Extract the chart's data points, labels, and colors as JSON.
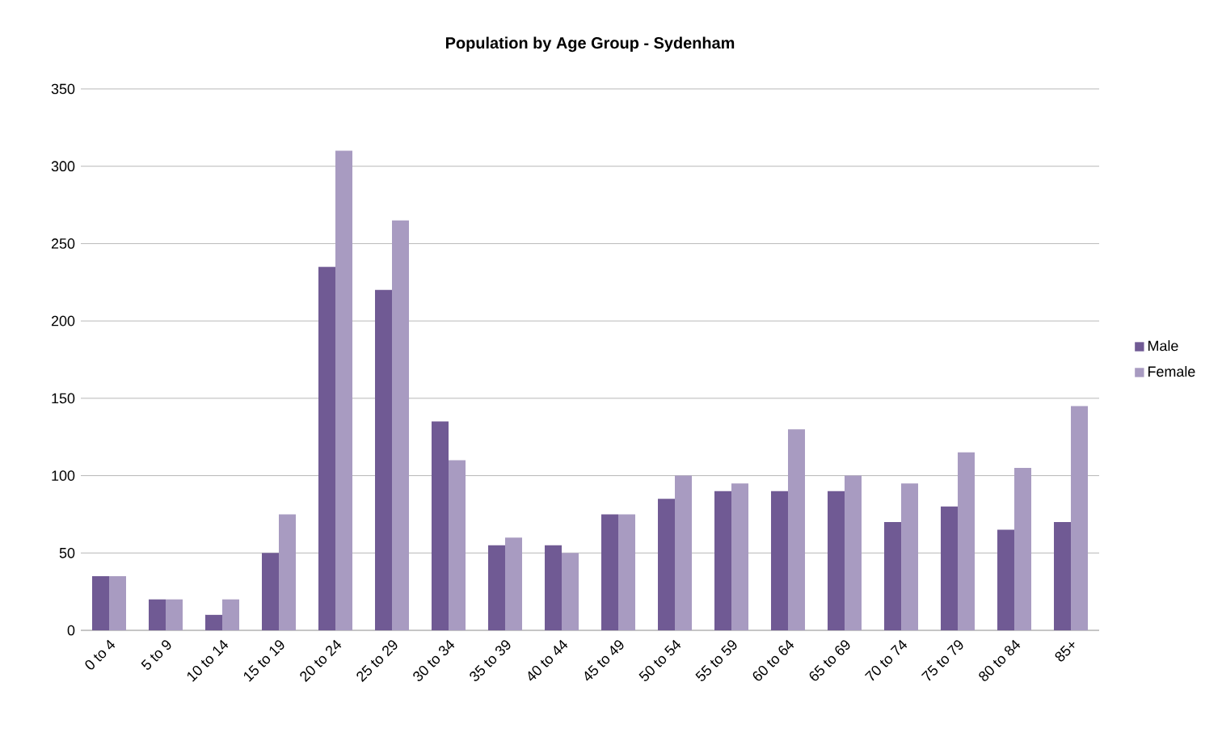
{
  "chart_data": {
    "type": "bar",
    "title": "Population by Age Group - Sydenham",
    "categories": [
      "0 to 4",
      "5 to 9",
      "10 to 14",
      "15 to 19",
      "20 to 24",
      "25 to 29",
      "30 to 34",
      "35 to 39",
      "40 to 44",
      "45 to 49",
      "50 to 54",
      "55 to 59",
      "60 to 64",
      "65 to 69",
      "70 to 74",
      "75 to 79",
      "80 to 84",
      "85+"
    ],
    "series": [
      {
        "name": "Male",
        "color": "#705a94",
        "values": [
          35,
          20,
          10,
          50,
          235,
          220,
          135,
          55,
          55,
          75,
          85,
          90,
          90,
          90,
          70,
          80,
          65,
          70
        ]
      },
      {
        "name": "Female",
        "color": "#a89bc1",
        "values": [
          35,
          20,
          20,
          75,
          310,
          265,
          110,
          60,
          50,
          75,
          100,
          95,
          130,
          100,
          95,
          115,
          105,
          145
        ]
      }
    ],
    "ylim": [
      0,
      350
    ],
    "yticks": [
      0,
      50,
      100,
      150,
      200,
      250,
      300,
      350
    ],
    "grid": "y",
    "legend": "right"
  }
}
